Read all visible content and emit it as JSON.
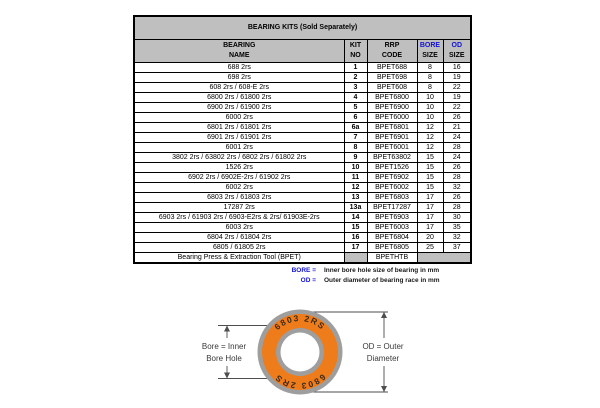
{
  "title": "BEARING KITS (Sold Separately)",
  "table": {
    "headers": {
      "name": [
        "BEARING",
        "NAME"
      ],
      "kit": [
        "KIT",
        "NO"
      ],
      "code": [
        "RRP",
        "CODE"
      ],
      "bore": [
        "BORE",
        "SIZE"
      ],
      "od": [
        "OD",
        "SIZE"
      ]
    },
    "rows": [
      {
        "name": "688 2rs",
        "kit": "1",
        "code": "BPET688",
        "bore": "8",
        "od": "16"
      },
      {
        "name": "698 2rs",
        "kit": "2",
        "code": "BPET698",
        "bore": "8",
        "od": "19"
      },
      {
        "name": "608 2rs / 608-E 2rs",
        "kit": "3",
        "code": "BPET608",
        "bore": "8",
        "od": "22"
      },
      {
        "name": "6800 2rs / 61800 2rs",
        "kit": "4",
        "code": "BPET6800",
        "bore": "10",
        "od": "19"
      },
      {
        "name": "6900 2rs / 61900 2rs",
        "kit": "5",
        "code": "BPET6900",
        "bore": "10",
        "od": "22"
      },
      {
        "name": "6000 2rs",
        "kit": "6",
        "code": "BPET6000",
        "bore": "10",
        "od": "26"
      },
      {
        "name": "6801 2rs / 61801 2rs",
        "kit": "6a",
        "code": "BPET6801",
        "bore": "12",
        "od": "21"
      },
      {
        "name": "6901 2rs / 61901 2rs",
        "kit": "7",
        "code": "BPET6901",
        "bore": "12",
        "od": "24"
      },
      {
        "name": "6001 2rs",
        "kit": "8",
        "code": "BPET6001",
        "bore": "12",
        "od": "28"
      },
      {
        "name": "3802 2rs / 63802 2rs / 6802 2rs / 61802 2rs",
        "kit": "9",
        "code": "BPET63802",
        "bore": "15",
        "od": "24"
      },
      {
        "name": "1526 2rs",
        "kit": "10",
        "code": "BPET1526",
        "bore": "15",
        "od": "26"
      },
      {
        "name": "6902 2rs / 6902E-2rs / 61902 2rs",
        "kit": "11",
        "code": "BPET6902",
        "bore": "15",
        "od": "28"
      },
      {
        "name": "6002 2rs",
        "kit": "12",
        "code": "BPET6002",
        "bore": "15",
        "od": "32"
      },
      {
        "name": "6803 2rs / 61803 2rs",
        "kit": "13",
        "code": "BPET6803",
        "bore": "17",
        "od": "26"
      },
      {
        "name": "17287 2rs",
        "kit": "13a",
        "code": "BPET17287",
        "bore": "17",
        "od": "28"
      },
      {
        "name": "6903 2rs / 61903 2rs / 6903-E2rs & 2rs/ 61903E-2rs",
        "kit": "14",
        "code": "BPET6903",
        "bore": "17",
        "od": "30"
      },
      {
        "name": "6003 2rs",
        "kit": "15",
        "code": "BPET6003",
        "bore": "17",
        "od": "35"
      },
      {
        "name": "6804 2rs / 61804 2rs",
        "kit": "16",
        "code": "BPET6804",
        "bore": "20",
        "od": "32"
      },
      {
        "name": "6805 / 61805 2rs",
        "kit": "17",
        "code": "BPET6805",
        "bore": "25",
        "od": "37"
      }
    ],
    "tool_row": {
      "name": "Bearing Press & Extraction Tool (BPET)",
      "code": "BPETHTB"
    }
  },
  "footnotes": [
    {
      "key": "BORE =",
      "text": "Inner bore hole size of bearing in mm"
    },
    {
      "key": "OD =",
      "text": "Outer diameter of bearing race in mm"
    }
  ],
  "diagram": {
    "ring_text_top": "6803 2RS",
    "ring_text_bottom": "6803 2RS",
    "bore_label": [
      "Bore = Inner",
      "Bore Hole"
    ],
    "od_label": [
      "OD = Outer",
      "Diameter"
    ]
  },
  "colors": {
    "title_bg": "#FFFF00",
    "header_bg": "#BFBFBF",
    "accent_blue": "#1212D6",
    "ring_orange": "#EE7C1B",
    "ring_gray": "#9E9E9E"
  }
}
